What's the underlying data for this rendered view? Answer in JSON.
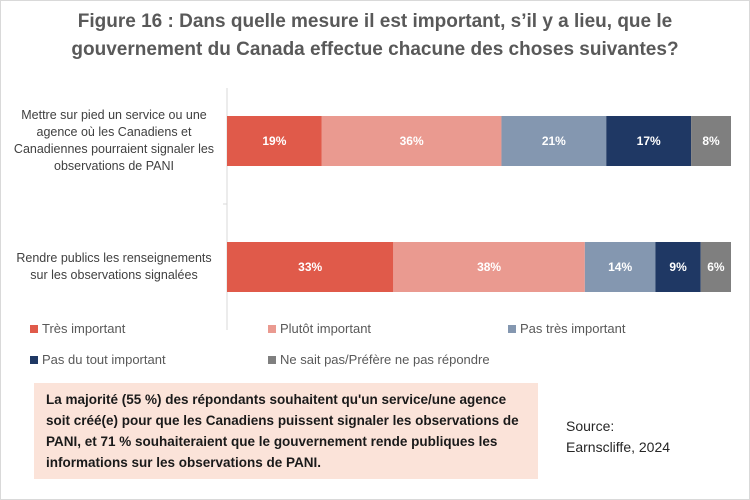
{
  "chart_data": {
    "type": "bar",
    "orientation": "horizontal",
    "stacked": true,
    "title": "Figure 16 : Dans quelle mesure il est important, s’il y a lieu, que le gouvernement du Canada effectue chacune des choses suivantes?",
    "categories": [
      "Mettre sur pied un service ou une agence où les Canadiens et Canadiennes pourraient signaler les observations de PANI",
      "Rendre publics les renseignements sur les observations signalées"
    ],
    "series": [
      {
        "name": "Très important",
        "color": "#e05a4a",
        "values": [
          19,
          33
        ]
      },
      {
        "name": "Plutôt important",
        "color": "#ea9a90",
        "values": [
          36,
          38
        ]
      },
      {
        "name": "Pas très important",
        "color": "#8497b0",
        "values": [
          21,
          14
        ]
      },
      {
        "name": "Pas du tout important",
        "color": "#1f3864",
        "values": [
          17,
          9
        ]
      },
      {
        "name": "Ne sait pas/Préfère ne pas répondre",
        "color": "#7f7f7f",
        "values": [
          8,
          6
        ]
      }
    ],
    "value_suffix": "%",
    "legend_position": "bottom",
    "grid": false
  },
  "note": "La majorité (55 %) des répondants souhaitent qu'un service/une agence soit créé(e) pour que les Canadiens puissent signaler les observations de PANI, et 71 % souhaiteraient que le gouvernement rende publiques les informations sur les observations de PANI.",
  "source": {
    "label": "Source:",
    "value": "Earnscliffe, 2024"
  }
}
